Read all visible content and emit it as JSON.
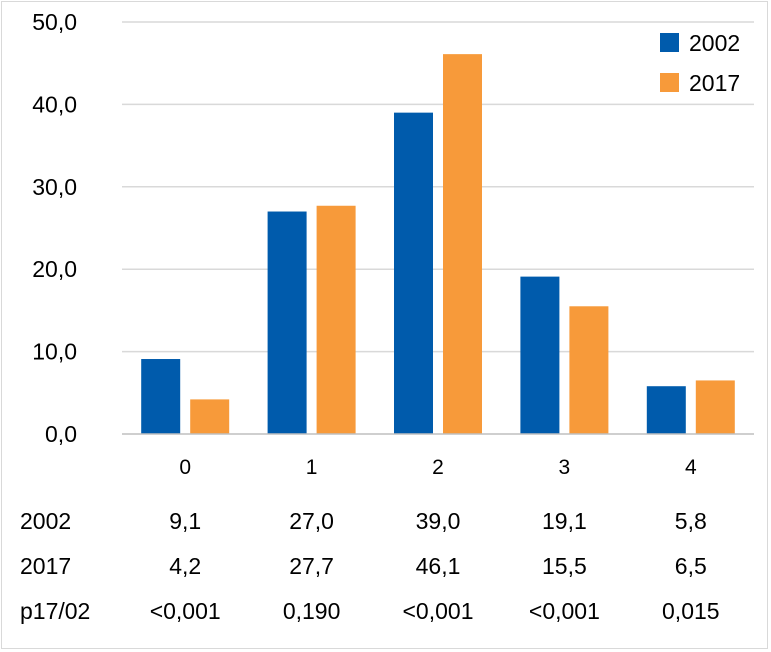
{
  "chart_data": {
    "type": "bar",
    "categories": [
      "0",
      "1",
      "2",
      "3",
      "4"
    ],
    "series": [
      {
        "name": "2002",
        "color": "#005BAC",
        "values": [
          9.1,
          27.0,
          39.0,
          19.1,
          5.8
        ]
      },
      {
        "name": "2017",
        "color": "#F79A3A",
        "values": [
          4.2,
          27.7,
          46.1,
          15.5,
          6.5
        ]
      }
    ],
    "ylim": [
      0,
      50
    ],
    "y_ticks": [
      "0,0",
      "10,0",
      "20,0",
      "30,0",
      "40,0",
      "50,0"
    ],
    "grid": true,
    "legend_position": "top-right",
    "data_table": {
      "rows": [
        {
          "label": "2002",
          "cells": [
            "9,1",
            "27,0",
            "39,0",
            "19,1",
            "5,8"
          ]
        },
        {
          "label": "2017",
          "cells": [
            "4,2",
            "27,7",
            "46,1",
            "15,5",
            "6,5"
          ]
        },
        {
          "label": "p17/02",
          "cells": [
            "<0,001",
            "0,190",
            "<0,001",
            "<0,001",
            "0,015"
          ]
        }
      ]
    }
  }
}
